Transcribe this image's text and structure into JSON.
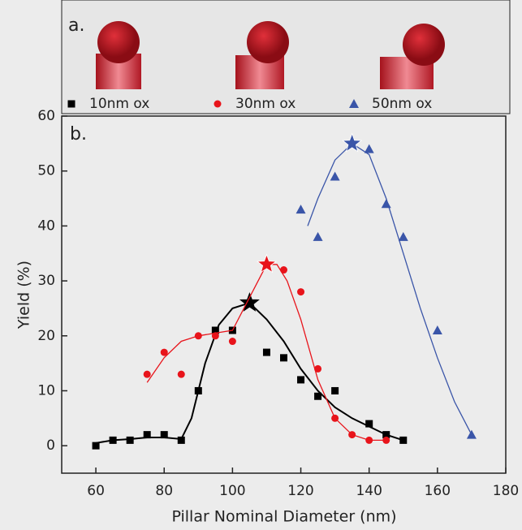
{
  "chart_data": {
    "type": "scatter",
    "panel_a": "a.",
    "panel_b": "b.",
    "xlabel": "Pillar Nominal Diameter (nm)",
    "ylabel": "Yield (%)",
    "xlim": [
      50,
      180
    ],
    "ylim": [
      -5,
      60
    ],
    "xticks": [
      60,
      80,
      100,
      120,
      140,
      160,
      180
    ],
    "yticks": [
      0,
      10,
      20,
      30,
      40,
      50,
      60
    ],
    "series": [
      {
        "name": "10nm ox",
        "color": "#000000",
        "marker": "square",
        "x": [
          60,
          65,
          70,
          75,
          80,
          85,
          90,
          95,
          100,
          110,
          115,
          120,
          125,
          130,
          140,
          145,
          150
        ],
        "values": [
          0,
          1,
          1,
          2,
          2,
          1,
          10,
          21,
          21,
          17,
          16,
          12,
          9,
          10,
          4,
          2,
          1
        ],
        "star": {
          "x": 105,
          "value": 26
        },
        "fit": {
          "x": [
            60,
            65,
            70,
            75,
            80,
            85,
            88,
            92,
            96,
            100,
            105,
            110,
            115,
            120,
            125,
            130,
            135,
            140,
            145,
            150
          ],
          "values": [
            0.5,
            1,
            1.2,
            1.5,
            1.5,
            1.2,
            5,
            15,
            22,
            25,
            26,
            23,
            19,
            14,
            10,
            7,
            5,
            3.5,
            2,
            1
          ]
        }
      },
      {
        "name": "30nm ox",
        "color": "#e8141b",
        "marker": "circle",
        "x": [
          75,
          80,
          85,
          90,
          95,
          100,
          115,
          120,
          125,
          130,
          135,
          140,
          145
        ],
        "values": [
          13,
          17,
          13,
          20,
          20,
          19,
          32,
          28,
          14,
          5,
          2,
          1,
          1
        ],
        "star": {
          "x": 110,
          "value": 33
        },
        "fit": {
          "x": [
            75,
            80,
            85,
            90,
            95,
            100,
            105,
            110,
            113,
            116,
            120,
            125,
            130,
            135,
            140,
            145
          ],
          "values": [
            11.5,
            16,
            19,
            20,
            20.5,
            21,
            27,
            33,
            33,
            30,
            23,
            12,
            5,
            2,
            1,
            1
          ]
        }
      },
      {
        "name": "50nm ox",
        "color": "#3a55a8",
        "marker": "triangle",
        "x": [
          120,
          125,
          130,
          140,
          145,
          150,
          160,
          170
        ],
        "values": [
          43,
          38,
          49,
          54,
          44,
          38,
          21,
          2
        ],
        "star": {
          "x": 135,
          "value": 55
        },
        "fit": {
          "x": [
            122,
            125,
            130,
            135,
            140,
            145,
            150,
            155,
            160,
            165,
            170
          ],
          "values": [
            40,
            45,
            52,
            55,
            53,
            45,
            35,
            25,
            16,
            8,
            2
          ]
        }
      }
    ]
  }
}
